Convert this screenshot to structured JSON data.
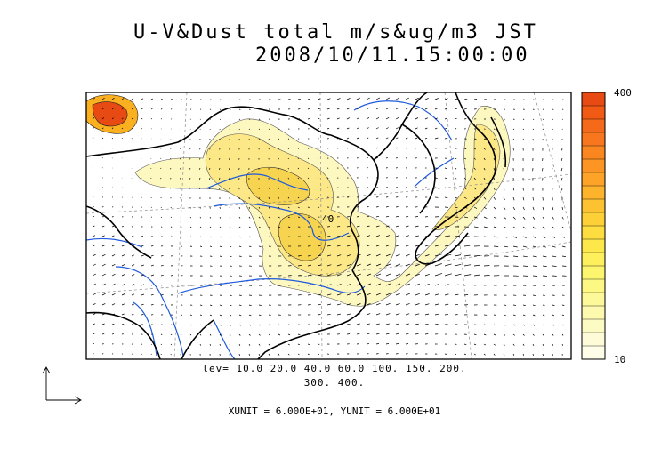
{
  "title": {
    "line1": "U-V&Dust total m/s&ug/m3 JST",
    "line2": "2008/10/11.15:00:00"
  },
  "colorbar": {
    "max_label": "400",
    "min_label": "10",
    "colors": [
      "#e84a14",
      "#f05a14",
      "#f5691a",
      "#f8771e",
      "#fa8620",
      "#fc9524",
      "#fda428",
      "#fdb32c",
      "#fdc232",
      "#fdd038",
      "#fddd40",
      "#fde84c",
      "#fdf05c",
      "#fdf56e",
      "#fdf884",
      "#fdf99a",
      "#fdfab0",
      "#fdfbc4",
      "#fefcd8",
      "#fefde8"
    ]
  },
  "contour_levels": {
    "line1": "lev= 10.0 20.0 40.0 60.0 100. 150. 200.",
    "line2": "300. 400."
  },
  "map_labels": {
    "contour_label": "40"
  },
  "vector_scale": {
    "text": "XUNIT = 6.000E+01, YUNIT = 6.000E+01"
  },
  "colors": {
    "coast": "#000000",
    "rivers": "#1e5adc",
    "graticule": "#8c8c8c",
    "dust_light": "#fdf7c0",
    "dust_mid": "#fde888",
    "dust_strong": "#f7d450",
    "dust_peak": "#e84a14"
  }
}
